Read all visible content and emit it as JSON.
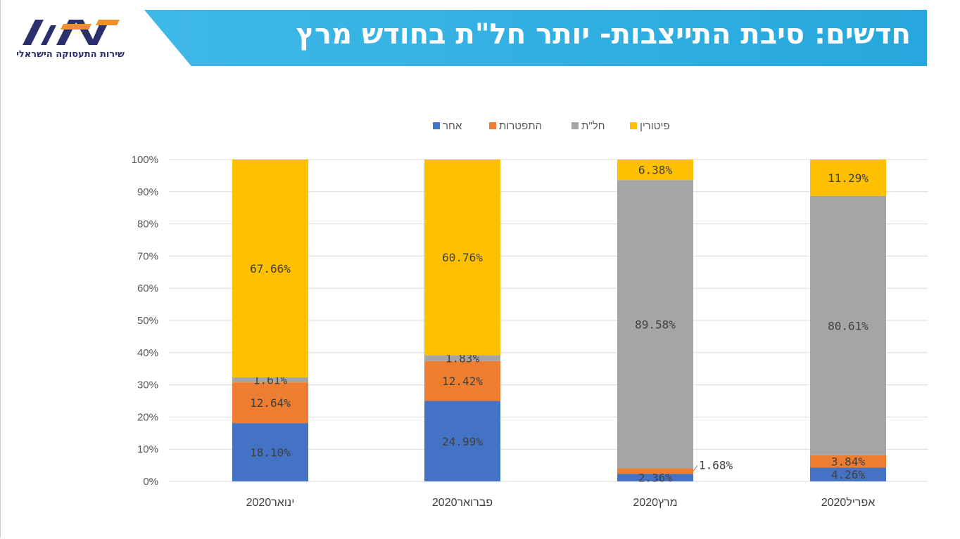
{
  "header": {
    "title": "חדשים: סיבת התייצבות- יותר חל\"ת בחודש מרץ",
    "logo_text": "שירות התעסוקה הישראלי"
  },
  "chart_data": {
    "type": "bar",
    "stacked": true,
    "percent": true,
    "categories": [
      "ינואר2020",
      "פברואר2020",
      "מרץ2020",
      "אפריל2020"
    ],
    "series": [
      {
        "name": "אחר",
        "color": "#4472c4",
        "values": [
          18.1,
          24.99,
          2.36,
          4.26
        ]
      },
      {
        "name": "התפטרות",
        "color": "#ed7d31",
        "values": [
          12.64,
          12.42,
          1.68,
          3.84
        ]
      },
      {
        "name": "חל\"ת",
        "color": "#a5a5a5",
        "values": [
          1.61,
          1.83,
          89.58,
          80.61
        ]
      },
      {
        "name": "פיטורין",
        "color": "#ffc000",
        "values": [
          67.66,
          60.76,
          6.38,
          11.29
        ]
      }
    ],
    "ylim": [
      0,
      100
    ],
    "yticks": [
      "0%",
      "10%",
      "20%",
      "30%",
      "40%",
      "50%",
      "60%",
      "70%",
      "80%",
      "90%",
      "100%"
    ],
    "grid": true,
    "legend": "top",
    "data_labels": [
      [
        "18.10%",
        "24.99%",
        "2.36%",
        "4.26%"
      ],
      [
        "12.64%",
        "12.42%",
        "1.68%",
        "3.84%"
      ],
      [
        "1.61%",
        "1.83%",
        "89.58%",
        "80.61%"
      ],
      [
        "67.66%",
        "60.76%",
        "6.38%",
        "11.29%"
      ]
    ]
  }
}
